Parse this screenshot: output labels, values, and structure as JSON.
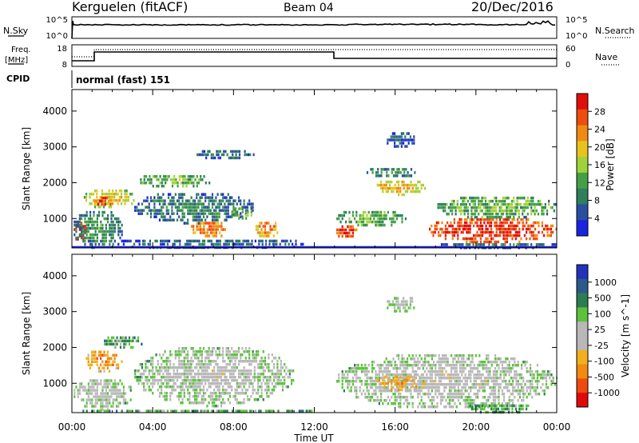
{
  "header": {
    "station": "Kerguelen (fitACF)",
    "beam": "Beam 04",
    "date": "20/Dec/2016"
  },
  "labels": {
    "nsky": "N.Sky",
    "nsearch": "N.Search",
    "freq_line1": "Freq.",
    "freq_line2": "[MHz]",
    "nave": "Nave",
    "cpid": "CPID",
    "cpid_value": "normal (fast) 151"
  },
  "noise_panel": {
    "left_ticks": [
      "10^5",
      "10^0"
    ],
    "right_ticks": [
      "10^5",
      "10^0"
    ]
  },
  "freq_panel": {
    "left_ticks": [
      "18",
      "8"
    ],
    "right_ticks": [
      "60",
      "0"
    ]
  },
  "colors": {
    "power": [
      "#1a23e0",
      "#2a4fa0",
      "#2e7f5a",
      "#45a045",
      "#9fd33a",
      "#e8c31e",
      "#f28a12",
      "#ee4d10",
      "#e00f0a"
    ],
    "velocity": [
      "#2233bb",
      "#2a5a8a",
      "#2e7d52",
      "#5bc23c",
      "#b8b8b8",
      "#b8b8b8",
      "#f0b020",
      "#f08a10",
      "#ee4a10",
      "#e00a0a"
    ]
  },
  "chart_data": [
    {
      "type": "heatmap",
      "title": "Power",
      "ylabel": "Slant Range [km]",
      "xlabel": "",
      "x_ticks": [
        "00:00",
        "04:00",
        "08:00",
        "12:00",
        "16:00",
        "20:00",
        "00:00"
      ],
      "xlim_hours": [
        0,
        24
      ],
      "y_ticks": [
        1000,
        2000,
        3000,
        4000
      ],
      "ylim": [
        180,
        4600
      ],
      "colorbar_label": "Power [dB]",
      "colorbar_ticks": [
        "4",
        "8",
        "12",
        "16",
        "20",
        "24",
        "28"
      ],
      "blobs": [
        {
          "t0": 0.0,
          "t1": 0.7,
          "r0": 400,
          "r1": 1000,
          "level": 8.5
        },
        {
          "t0": 0.5,
          "t1": 3.2,
          "r0": 1300,
          "r1": 1900,
          "level": 5.0
        },
        {
          "t0": 1.0,
          "t1": 2.0,
          "r0": 1350,
          "r1": 1700,
          "level": 7.2
        },
        {
          "t0": 0.0,
          "t1": 2.5,
          "r0": 200,
          "r1": 1300,
          "level": 2.6
        },
        {
          "t0": 3.2,
          "t1": 7.0,
          "r0": 1900,
          "r1": 2300,
          "level": 3.6
        },
        {
          "t0": 3.0,
          "t1": 9.0,
          "r0": 900,
          "r1": 1800,
          "level": 2.2
        },
        {
          "t0": 5.8,
          "t1": 7.8,
          "r0": 500,
          "r1": 1000,
          "level": 6.5
        },
        {
          "t0": 7.8,
          "t1": 9.0,
          "r0": 1000,
          "r1": 1400,
          "level": 3.6
        },
        {
          "t0": 9.0,
          "t1": 10.2,
          "r0": 500,
          "r1": 1000,
          "level": 6.2
        },
        {
          "t0": 2.0,
          "t1": 11.5,
          "r0": 200,
          "r1": 500,
          "level": 1.6
        },
        {
          "t0": 13.0,
          "t1": 16.5,
          "r0": 800,
          "r1": 1300,
          "level": 3.5
        },
        {
          "t0": 13.0,
          "t1": 14.2,
          "r0": 450,
          "r1": 900,
          "level": 7.6
        },
        {
          "t0": 15.0,
          "t1": 17.5,
          "r0": 1700,
          "r1": 2150,
          "level": 5.5
        },
        {
          "t0": 14.5,
          "t1": 17.0,
          "r0": 2150,
          "r1": 2500,
          "level": 2.5
        },
        {
          "t0": 17.5,
          "t1": 24.0,
          "r0": 350,
          "r1": 1100,
          "level": 7.8
        },
        {
          "t0": 18.0,
          "t1": 24.0,
          "r0": 1000,
          "r1": 1700,
          "level": 3.5
        },
        {
          "t0": 18.0,
          "t1": 24.0,
          "r0": 200,
          "r1": 400,
          "level": 2.0
        },
        {
          "t0": 15.5,
          "t1": 17.0,
          "r0": 3000,
          "r1": 3500,
          "level": 1.5
        },
        {
          "t0": 6.0,
          "t1": 9.0,
          "r0": 2700,
          "r1": 3000,
          "level": 2.0
        }
      ]
    },
    {
      "type": "heatmap",
      "title": "Velocity",
      "ylabel": "Slant Range [km]",
      "xlabel": "Time UT",
      "x_ticks": [
        "00:00",
        "04:00",
        "08:00",
        "12:00",
        "16:00",
        "20:00",
        "00:00"
      ],
      "xlim_hours": [
        0,
        24
      ],
      "y_ticks": [
        1000,
        2000,
        3000,
        4000
      ],
      "ylim": [
        180,
        4600
      ],
      "colorbar_label": "Velocity [m s^-1]",
      "colorbar_ticks": [
        "1000",
        "500",
        "100",
        "25",
        "-25",
        "-100",
        "-500",
        "-1000"
      ],
      "blobs": [
        {
          "t0": 0.0,
          "t1": 3.0,
          "r0": 300,
          "r1": 1200,
          "level": 4.5
        },
        {
          "t0": 0.6,
          "t1": 2.5,
          "r0": 1350,
          "r1": 2000,
          "level": 7.0
        },
        {
          "t0": 1.5,
          "t1": 3.5,
          "r0": 2000,
          "r1": 2400,
          "level": 3.0
        },
        {
          "t0": 3.0,
          "t1": 11.0,
          "r0": 400,
          "r1": 2100,
          "level": 4.5
        },
        {
          "t0": 0.0,
          "t1": 12.0,
          "r0": 200,
          "r1": 350,
          "level": 3.0
        },
        {
          "t0": 13.0,
          "t1": 24.0,
          "r0": 300,
          "r1": 1900,
          "level": 4.6
        },
        {
          "t0": 15.0,
          "t1": 17.5,
          "r0": 800,
          "r1": 1300,
          "level": 6.6
        },
        {
          "t0": 19.5,
          "t1": 23.0,
          "r0": 200,
          "r1": 500,
          "level": 3.0
        },
        {
          "t0": 15.5,
          "t1": 17.0,
          "r0": 3000,
          "r1": 3500,
          "level": 4.5
        }
      ]
    }
  ]
}
